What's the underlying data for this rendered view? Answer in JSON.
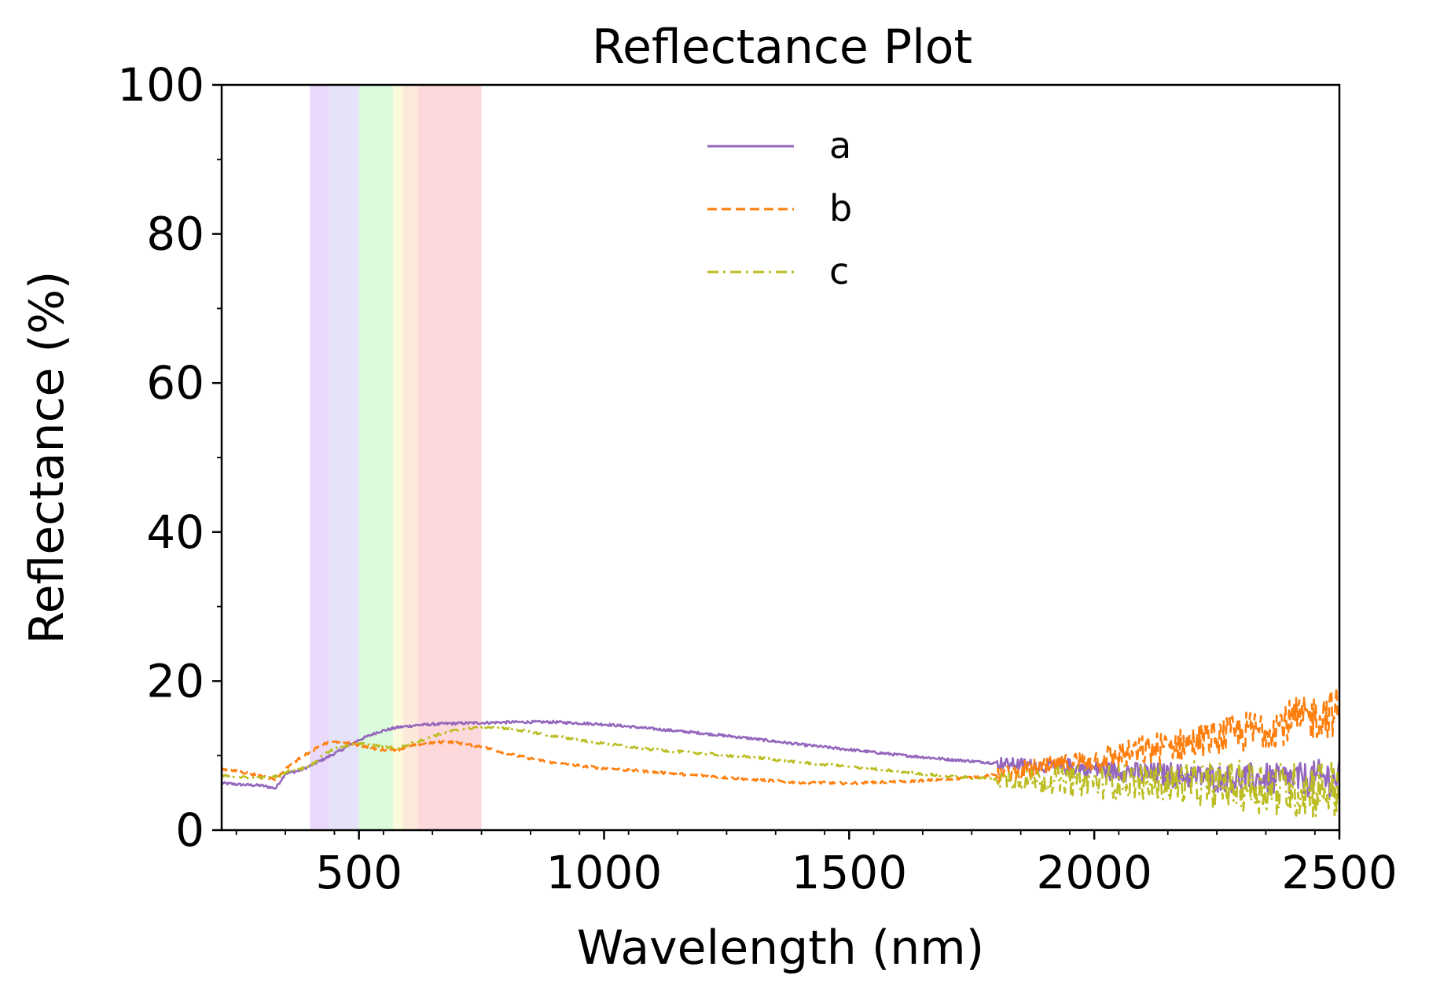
{
  "chart_data": {
    "type": "line",
    "title": "Reflectance Plot",
    "xlabel": "Wavelength (nm)",
    "ylabel": "Reflectance (%)",
    "xlim": [
      220,
      2500
    ],
    "ylim": [
      0,
      100
    ],
    "xticks": [
      "500",
      "1000",
      "1500",
      "2000",
      "2500"
    ],
    "yticks": [
      "0",
      "20",
      "40",
      "60",
      "80",
      "100"
    ],
    "legend_position": "upper-center",
    "bands": [
      {
        "from": 400,
        "to": 440,
        "color": "#ead9fa"
      },
      {
        "from": 440,
        "to": 500,
        "color": "#e4e3fa"
      },
      {
        "from": 500,
        "to": 570,
        "color": "#dcfadc"
      },
      {
        "from": 570,
        "to": 590,
        "color": "#fcfadc"
      },
      {
        "from": 590,
        "to": 620,
        "color": "#fde9dc"
      },
      {
        "from": 620,
        "to": 750,
        "color": "#fdd9dc"
      }
    ],
    "series": [
      {
        "name": "a",
        "color": "#9467bd",
        "dash": "solid",
        "points": [
          [
            220,
            6.3
          ],
          [
            260,
            6.1
          ],
          [
            300,
            6.0
          ],
          [
            330,
            5.6
          ],
          [
            350,
            7.6
          ],
          [
            380,
            8.0
          ],
          [
            400,
            8.6
          ],
          [
            430,
            9.6
          ],
          [
            460,
            10.6
          ],
          [
            500,
            12.1
          ],
          [
            540,
            13.2
          ],
          [
            580,
            13.8
          ],
          [
            620,
            14.1
          ],
          [
            680,
            14.3
          ],
          [
            750,
            14.4
          ],
          [
            820,
            14.5
          ],
          [
            900,
            14.5
          ],
          [
            1000,
            14.2
          ],
          [
            1100,
            13.6
          ],
          [
            1200,
            13.0
          ],
          [
            1300,
            12.3
          ],
          [
            1400,
            11.5
          ],
          [
            1500,
            10.8
          ],
          [
            1600,
            10.1
          ],
          [
            1700,
            9.5
          ],
          [
            1800,
            9.0
          ],
          [
            1900,
            8.6
          ],
          [
            2000,
            8.2
          ],
          [
            2100,
            7.6
          ],
          [
            2200,
            7.2
          ],
          [
            2300,
            6.9
          ],
          [
            2400,
            6.8
          ],
          [
            2500,
            7.0
          ]
        ],
        "noise_from": 1800,
        "noise_amp": 1.8
      },
      {
        "name": "b",
        "color": "#ff7f0e",
        "dash": "dashed",
        "points": [
          [
            220,
            8.2
          ],
          [
            260,
            7.8
          ],
          [
            300,
            7.3
          ],
          [
            330,
            6.8
          ],
          [
            360,
            8.8
          ],
          [
            400,
            10.5
          ],
          [
            430,
            11.6
          ],
          [
            460,
            11.9
          ],
          [
            500,
            11.4
          ],
          [
            540,
            10.8
          ],
          [
            580,
            10.8
          ],
          [
            620,
            11.5
          ],
          [
            680,
            11.9
          ],
          [
            750,
            11.2
          ],
          [
            820,
            10.0
          ],
          [
            900,
            9.0
          ],
          [
            1000,
            8.3
          ],
          [
            1100,
            7.8
          ],
          [
            1200,
            7.3
          ],
          [
            1300,
            6.8
          ],
          [
            1400,
            6.4
          ],
          [
            1500,
            6.3
          ],
          [
            1600,
            6.5
          ],
          [
            1700,
            6.8
          ],
          [
            1800,
            7.4
          ],
          [
            1900,
            8.4
          ],
          [
            2000,
            9.4
          ],
          [
            2100,
            10.6
          ],
          [
            2200,
            11.8
          ],
          [
            2300,
            13.0
          ],
          [
            2400,
            14.5
          ],
          [
            2500,
            16.0
          ]
        ],
        "noise_from": 1800,
        "noise_amp": 2.4
      },
      {
        "name": "c",
        "color": "#bcbd22",
        "dash": "dashdot",
        "points": [
          [
            220,
            7.3
          ],
          [
            260,
            7.1
          ],
          [
            300,
            7.0
          ],
          [
            330,
            7.2
          ],
          [
            360,
            8.0
          ],
          [
            400,
            8.5
          ],
          [
            430,
            10.2
          ],
          [
            460,
            11.2
          ],
          [
            500,
            11.6
          ],
          [
            540,
            11.3
          ],
          [
            580,
            11.0
          ],
          [
            620,
            11.9
          ],
          [
            680,
            13.2
          ],
          [
            750,
            13.9
          ],
          [
            820,
            13.5
          ],
          [
            900,
            12.6
          ],
          [
            1000,
            11.6
          ],
          [
            1100,
            10.8
          ],
          [
            1200,
            10.3
          ],
          [
            1300,
            9.8
          ],
          [
            1400,
            9.1
          ],
          [
            1500,
            8.5
          ],
          [
            1600,
            7.9
          ],
          [
            1700,
            7.2
          ],
          [
            1800,
            6.9
          ],
          [
            1900,
            6.7
          ],
          [
            2000,
            6.5
          ],
          [
            2100,
            6.4
          ],
          [
            2200,
            6.2
          ],
          [
            2300,
            6.0
          ],
          [
            2400,
            5.5
          ],
          [
            2500,
            5.5
          ]
        ],
        "noise_from": 1800,
        "noise_amp": 3.0
      }
    ]
  }
}
